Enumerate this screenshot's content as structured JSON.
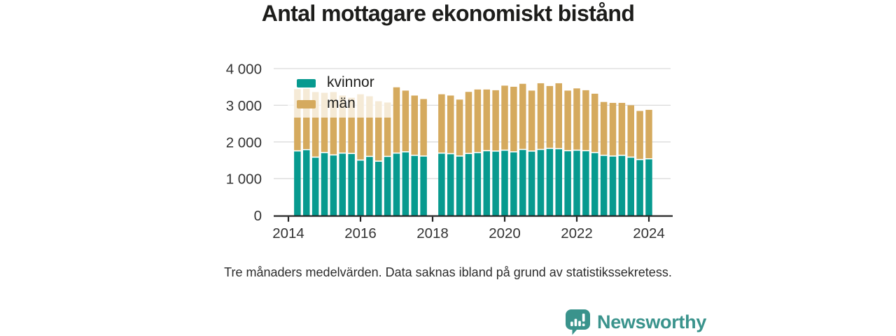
{
  "chart_data": {
    "type": "bar",
    "stacked": true,
    "title": "Antal mottagare ekonomiskt bistånd",
    "x_start": 2014.25,
    "x_step": 0.25,
    "labels": [
      "2014K2",
      "2014K3",
      "2014K4",
      "2015K1",
      "2015K2",
      "2015K3",
      "2015K4",
      "2016K1",
      "2016K2",
      "2016K3",
      "2016K4",
      "2017K1",
      "2017K2",
      "2017K3",
      "2017K4",
      "2018K1",
      "2018K2",
      "2018K3",
      "2018K4",
      "2019K1",
      "2019K2",
      "2019K3",
      "2019K4",
      "2020K1",
      "2020K2",
      "2020K3",
      "2020K4",
      "2021K1",
      "2021K2",
      "2021K3",
      "2021K4",
      "2022K1",
      "2022K2",
      "2022K3",
      "2022K4",
      "2023K1",
      "2023K2",
      "2023K3",
      "2023K4",
      "2024K1"
    ],
    "series": [
      {
        "name": "kvinnor",
        "color": "#079a8f",
        "values": [
          1740,
          1775,
          1570,
          1695,
          1630,
          1680,
          1670,
          1490,
          1590,
          1460,
          1590,
          1680,
          1715,
          1620,
          1600,
          null,
          1680,
          1665,
          1600,
          1670,
          1695,
          1745,
          1735,
          1760,
          1715,
          1780,
          1735,
          1780,
          1810,
          1800,
          1745,
          1760,
          1745,
          1695,
          1620,
          1600,
          1620,
          1570,
          1505,
          1525
        ]
      },
      {
        "name": "män",
        "color": "#d5aa5e",
        "values": [
          1700,
          1675,
          1790,
          1645,
          1730,
          1585,
          1535,
          1810,
          1655,
          1650,
          1485,
          1810,
          1685,
          1645,
          1570,
          null,
          1620,
          1600,
          1555,
          1695,
          1735,
          1685,
          1675,
          1775,
          1790,
          1805,
          1665,
          1820,
          1715,
          1800,
          1655,
          1700,
          1665,
          1620,
          1470,
          1465,
          1445,
          1430,
          1340,
          1350
        ]
      }
    ],
    "ylim": [
      0,
      4000
    ],
    "grid": true,
    "legend_position": "top-left-inside",
    "y_axis": {
      "tick_values": [
        0,
        1000,
        2000,
        3000,
        4000
      ],
      "tick_labels": [
        "0",
        "1 000",
        "2 000",
        "3 000",
        "4 000"
      ]
    },
    "x_axis": {
      "tick_values": [
        2014,
        2016,
        2018,
        2020,
        2022,
        2024
      ],
      "tick_labels": [
        "2014",
        "2016",
        "2018",
        "2020",
        "2022",
        "2024"
      ]
    }
  },
  "footnote": {
    "text": "Tre månaders medelvärden. Data saknas ibland på grund av statistikssekretess."
  },
  "branding": {
    "name": "Newsworthy",
    "color": "#3a938c"
  },
  "style_colors": {
    "axis_line": "#222222",
    "gridline": "#d9d9d9",
    "axis_text": "#333333"
  }
}
